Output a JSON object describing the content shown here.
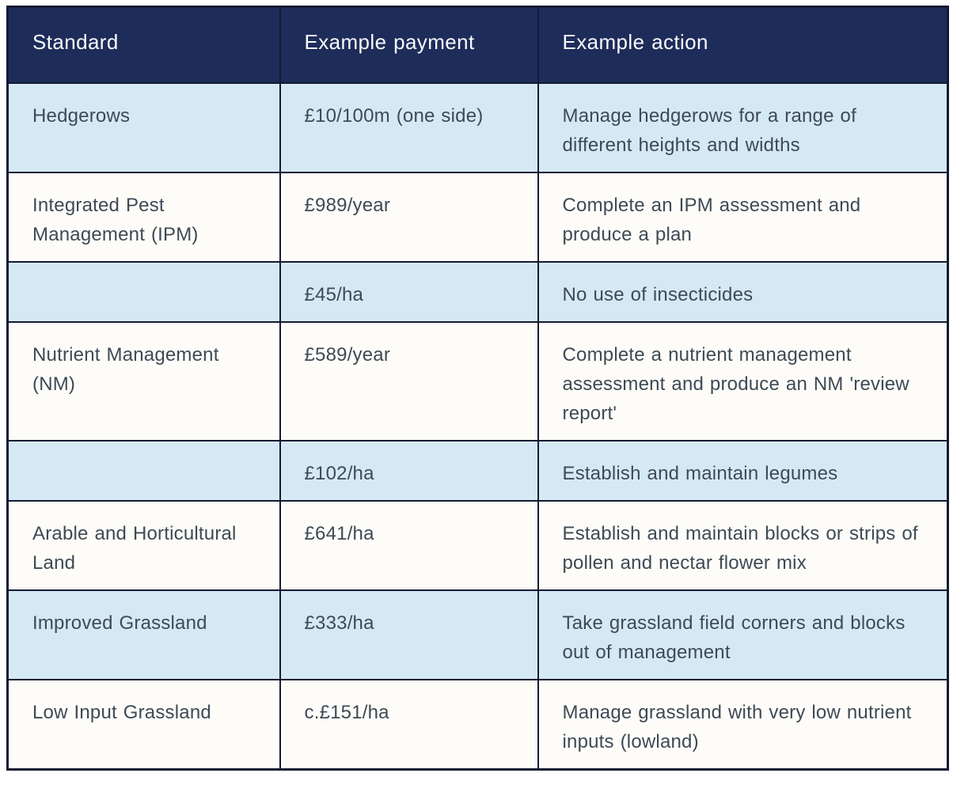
{
  "table": {
    "columns": [
      {
        "label": "Standard"
      },
      {
        "label": "Example payment"
      },
      {
        "label": "Example action"
      }
    ],
    "rows": [
      {
        "standard": "Hedgerows",
        "payment": "£10/100m (one side)",
        "action": "Manage hedgerows for a range of different heights and widths",
        "shade": "blue"
      },
      {
        "standard": "Integrated Pest Management (IPM)",
        "payment": "£989/year",
        "action": "Complete an IPM assessment and produce a plan",
        "shade": "white"
      },
      {
        "standard": "",
        "payment": "£45/ha",
        "action": "No use of insecticides",
        "shade": "blue"
      },
      {
        "standard": "Nutrient Management (NM)",
        "payment": "£589/year",
        "action": "Complete a nutrient management assessment and produce an NM 'review report'",
        "shade": "white"
      },
      {
        "standard": "",
        "payment": "£102/ha",
        "action": "Establish and maintain legumes",
        "shade": "blue"
      },
      {
        "standard": "Arable and Horticultural Land",
        "payment": "£641/ha",
        "action": "Establish and maintain blocks or strips of pollen and nectar flower mix",
        "shade": "white"
      },
      {
        "standard": "Improved Grassland",
        "payment": "£333/ha",
        "action": "Take grassland field corners and blocks out of management",
        "shade": "blue"
      },
      {
        "standard": "Low Input Grassland",
        "payment": "c.£151/ha",
        "action": "Manage grassland with very low nutrient inputs (lowland)",
        "shade": "white"
      }
    ],
    "colors": {
      "header_bg": "#1e2c5a",
      "header_text": "#fafafa",
      "row_blue": "#d5e9f5",
      "row_white": "#fdfcf8",
      "body_text": "#3e4a55",
      "border": "#151a33"
    }
  }
}
